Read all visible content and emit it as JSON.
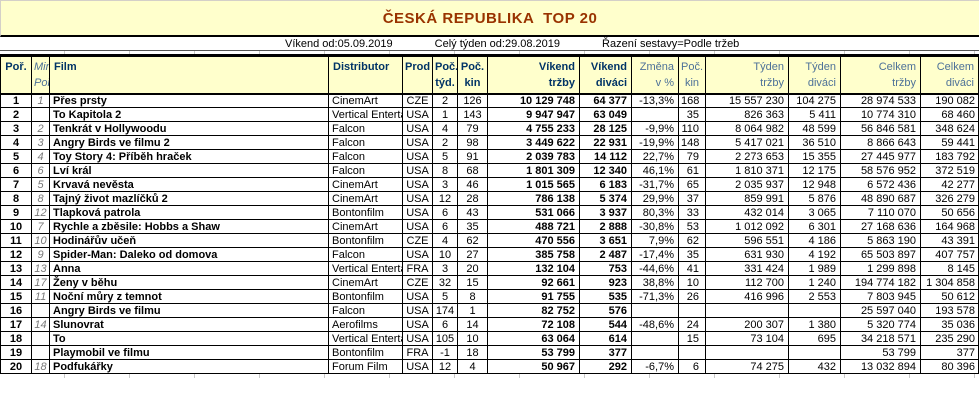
{
  "title": "ČESKÁ REPUBLIKA  TOP 20",
  "subtitle": {
    "weekend_from": "Víkend od:05.09.2019",
    "week_from": "Celý týden od:29.08.2019",
    "sorting": "Řazení sestavy=Podle tržeb"
  },
  "colors": {
    "band_background": "#FFFFCC",
    "title_text": "#993300",
    "header_dark_blue": "#003366",
    "header_light_blue": "#4d7198",
    "min_rank_gray": "#7a7a7a"
  },
  "table": {
    "headers": [
      {
        "l1": "Poř.",
        "l2": ""
      },
      {
        "l1": "Min.",
        "l2": "Poř."
      },
      {
        "l1": "Film",
        "l2": ""
      },
      {
        "l1": "Distributor",
        "l2": ""
      },
      {
        "l1": "Prod",
        "l2": ""
      },
      {
        "l1": "Poč.",
        "l2": "týd."
      },
      {
        "l1": "Poč.",
        "l2": "kin"
      },
      {
        "l1": "Víkend",
        "l2": "tržby"
      },
      {
        "l1": "Víkend",
        "l2": "diváci"
      },
      {
        "l1": "Změna",
        "l2": "v %"
      },
      {
        "l1": "Poč.",
        "l2": "kin"
      },
      {
        "l1": "Týden",
        "l2": "tržby"
      },
      {
        "l1": "Týden",
        "l2": "diváci"
      },
      {
        "l1": "Celkem",
        "l2": "tržby"
      },
      {
        "l1": "Celkem",
        "l2": "diváci"
      }
    ],
    "rows": [
      [
        "1",
        "1",
        "Přes prsty",
        "CinemArt",
        "CZE",
        "2",
        "126",
        "10 129 748",
        "64 377",
        "-13,3%",
        "168",
        "15 557 230",
        "104 275",
        "28 974 533",
        "190 082"
      ],
      [
        "2",
        "",
        "To Kapitola 2",
        "Vertical Enterta",
        "USA",
        "1",
        "143",
        "9 947 947",
        "63 049",
        "",
        "35",
        "826 363",
        "5 411",
        "10 774 310",
        "68 460"
      ],
      [
        "3",
        "2",
        "Tenkrát v Hollywoodu",
        "Falcon",
        "USA",
        "4",
        "79",
        "4 755 233",
        "28 125",
        "-9,9%",
        "110",
        "8 064 982",
        "48 599",
        "56 846 581",
        "348 624"
      ],
      [
        "4",
        "3",
        "Angry Birds ve filmu 2",
        "Falcon",
        "USA",
        "2",
        "98",
        "3 449 622",
        "22 931",
        "-19,9%",
        "148",
        "5 417 021",
        "36 510",
        "8 866 643",
        "59 441"
      ],
      [
        "5",
        "4",
        "Toy Story 4: Příběh hraček",
        "Falcon",
        "USA",
        "5",
        "91",
        "2 039 783",
        "14 112",
        "22,7%",
        "79",
        "2 273 653",
        "15 355",
        "27 445 977",
        "183 792"
      ],
      [
        "6",
        "6",
        "Lví král",
        "Falcon",
        "USA",
        "8",
        "68",
        "1 801 309",
        "12 340",
        "46,1%",
        "61",
        "1 810 371",
        "12 175",
        "58 576 952",
        "372 519"
      ],
      [
        "7",
        "5",
        "Krvavá nevěsta",
        "CinemArt",
        "USA",
        "3",
        "46",
        "1 015 565",
        "6 183",
        "-31,7%",
        "65",
        "2 035 937",
        "12 948",
        "6 572 436",
        "42 277"
      ],
      [
        "8",
        "8",
        "Tajný život mazlíčků 2",
        "CinemArt",
        "USA",
        "12",
        "28",
        "786 138",
        "5 374",
        "29,9%",
        "37",
        "859 991",
        "5 876",
        "48 890 687",
        "326 279"
      ],
      [
        "9",
        "12",
        "Tlapková patrola",
        "Bontonfilm",
        "USA",
        "6",
        "43",
        "531 066",
        "3 937",
        "80,3%",
        "33",
        "432 014",
        "3 065",
        "7 110 070",
        "50 656"
      ],
      [
        "10",
        "7",
        "Rychle a zběsile: Hobbs a Shaw",
        "CinemArt",
        "USA",
        "6",
        "35",
        "488 721",
        "2 888",
        "-30,8%",
        "53",
        "1 012 092",
        "6 301",
        "27 168 636",
        "164 968"
      ],
      [
        "11",
        "10",
        "Hodinářův učeň",
        "Bontonfilm",
        "CZE",
        "4",
        "62",
        "470 556",
        "3 651",
        "7,9%",
        "62",
        "596 551",
        "4 186",
        "5 863 190",
        "43 391"
      ],
      [
        "12",
        "9",
        "Spider-Man: Daleko od domova",
        "Falcon",
        "USA",
        "10",
        "27",
        "385 758",
        "2 487",
        "-17,4%",
        "35",
        "631 930",
        "4 192",
        "65 503 897",
        "407 757"
      ],
      [
        "13",
        "13",
        "Anna",
        "Vertical Enterta",
        "FRA",
        "3",
        "20",
        "132 104",
        "753",
        "-44,6%",
        "41",
        "331 424",
        "1 989",
        "1 299 898",
        "8 145"
      ],
      [
        "14",
        "17",
        "Ženy v běhu",
        "CinemArt",
        "CZE",
        "32",
        "15",
        "92 661",
        "923",
        "38,8%",
        "10",
        "112 700",
        "1 240",
        "194 774 182",
        "1 304 858"
      ],
      [
        "15",
        "11",
        "Noční můry z temnot",
        "Bontonfilm",
        "USA",
        "5",
        "8",
        "91 755",
        "535",
        "-71,3%",
        "26",
        "416 996",
        "2 553",
        "7 803 945",
        "50 612"
      ],
      [
        "16",
        "",
        "Angry Birds ve filmu",
        "Falcon",
        "USA",
        "174",
        "1",
        "82 752",
        "576",
        "",
        "",
        "",
        "",
        "25 597 040",
        "193 578"
      ],
      [
        "17",
        "14",
        "Slunovrat",
        "Aerofilms",
        "USA",
        "6",
        "14",
        "72 108",
        "544",
        "-48,6%",
        "24",
        "200 307",
        "1 380",
        "5 320 774",
        "35 036"
      ],
      [
        "18",
        "",
        "To",
        "Vertical Enterta",
        "USA",
        "105",
        "10",
        "63 064",
        "614",
        "",
        "15",
        "73 104",
        "695",
        "34 218 571",
        "235 290"
      ],
      [
        "19",
        "",
        "Playmobil ve filmu",
        "Bontonfilm",
        "FRA",
        "-1",
        "18",
        "53 799",
        "377",
        "",
        "",
        "",
        "",
        "53 799",
        "377"
      ],
      [
        "20",
        "18",
        "Podfukářky",
        "Forum Film",
        "USA",
        "12",
        "4",
        "50 967",
        "292",
        "-6,7%",
        "6",
        "74 275",
        "432",
        "13 032 894",
        "80 396"
      ]
    ]
  }
}
